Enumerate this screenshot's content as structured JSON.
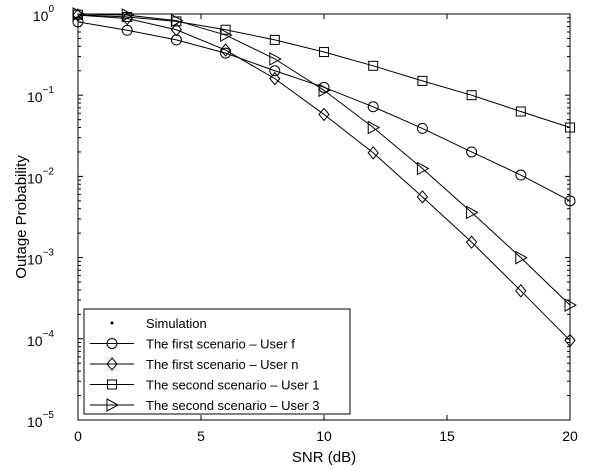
{
  "chart_data": {
    "type": "line",
    "xlabel": "SNR (dB)",
    "ylabel": "Outage Probability",
    "x_scale": "linear",
    "y_scale": "log",
    "xlim": [
      0,
      20
    ],
    "ylim": [
      1e-05,
      1
    ],
    "x_ticks": [
      0,
      5,
      10,
      15,
      20
    ],
    "x_tick_labels": [
      "0",
      "5",
      "10",
      "15",
      "20"
    ],
    "y_ticks": [
      {
        "value": 1e-05,
        "base": "10",
        "exp": "−5"
      },
      {
        "value": 0.0001,
        "base": "10",
        "exp": "−4"
      },
      {
        "value": 0.001,
        "base": "10",
        "exp": "−3"
      },
      {
        "value": 0.01,
        "base": "10",
        "exp": "−2"
      },
      {
        "value": 0.1,
        "base": "10",
        "exp": "−1"
      },
      {
        "value": 1,
        "base": "10",
        "exp": "0"
      }
    ],
    "grid": false,
    "legend_position": "bottom-left",
    "legend_entries": [
      {
        "label": "Simulation",
        "marker": "dot",
        "line": false
      },
      {
        "label": "The first scenario – User f",
        "marker": "circle",
        "line": true
      },
      {
        "label": "The first scenario – User n",
        "marker": "diamond",
        "line": true
      },
      {
        "label": "The second scenario – User 1",
        "marker": "square",
        "line": true
      },
      {
        "label": "The second scenario – User 3",
        "marker": "triangle-right",
        "line": true
      }
    ],
    "series": [
      {
        "name": "The first scenario – User f",
        "marker": "circle",
        "x": [
          0,
          2,
          4,
          6,
          8,
          10,
          12,
          14,
          16,
          18,
          20
        ],
        "values": [
          0.8,
          0.63,
          0.48,
          0.33,
          0.2,
          0.125,
          0.072,
          0.039,
          0.02,
          0.0104,
          0.005
        ]
      },
      {
        "name": "The first scenario – User n",
        "marker": "diamond",
        "x": [
          0,
          2,
          4,
          6,
          8,
          10,
          12,
          14,
          16,
          18,
          20
        ],
        "values": [
          0.97,
          0.88,
          0.64,
          0.36,
          0.16,
          0.058,
          0.0195,
          0.0056,
          0.00155,
          0.00039,
          9.55e-05
        ]
      },
      {
        "name": "The second scenario – User 1",
        "marker": "square",
        "x": [
          0,
          2,
          4,
          6,
          8,
          10,
          12,
          14,
          16,
          18,
          20
        ],
        "values": [
          0.98,
          0.92,
          0.81,
          0.64,
          0.48,
          0.34,
          0.23,
          0.15,
          0.1,
          0.063,
          0.04
        ]
      },
      {
        "name": "The second scenario – User 3",
        "marker": "triangle-right",
        "x": [
          0,
          2,
          4,
          6,
          8,
          10,
          12,
          14,
          16,
          18,
          20
        ],
        "values": [
          1.0,
          0.97,
          0.83,
          0.55,
          0.28,
          0.115,
          0.04,
          0.0125,
          0.0036,
          0.001,
          0.00026
        ]
      }
    ]
  }
}
